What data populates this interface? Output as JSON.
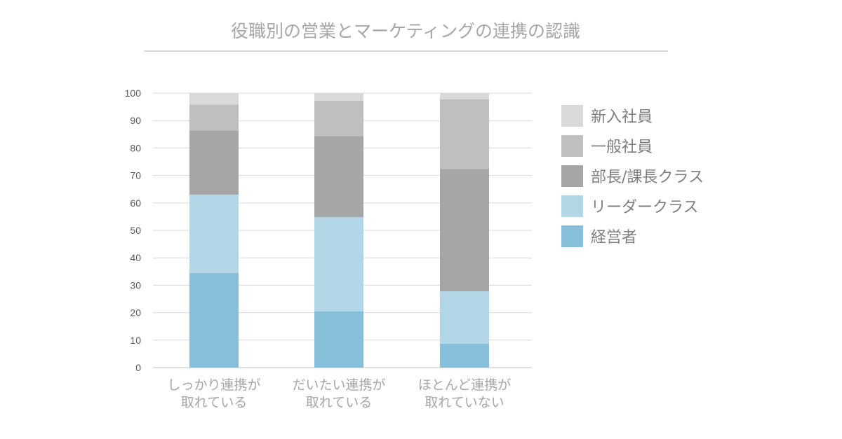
{
  "chart_data": {
    "type": "bar",
    "stacked": true,
    "title": "役職別の営業とマーケティングの連携の認識",
    "categories": [
      [
        "しっかり連携が",
        "取れている"
      ],
      [
        "だいたい連携が",
        "取れている"
      ],
      [
        "ほとんど連携が",
        "取れていない"
      ]
    ],
    "ylim": [
      0,
      100
    ],
    "yticks": [
      0,
      10,
      20,
      30,
      40,
      50,
      60,
      70,
      80,
      90,
      100
    ],
    "grid": true,
    "legend_position": "right",
    "series": [
      {
        "name": "経営者",
        "color": "#87bfda",
        "values": [
          34.5,
          20.5,
          8.7
        ]
      },
      {
        "name": "リーダークラス",
        "color": "#b2d6e6",
        "values": [
          28.5,
          34.3,
          19.1
        ]
      },
      {
        "name": "部長/課長クラス",
        "color": "#a6a6a6",
        "values": [
          23.4,
          29.5,
          44.6
        ]
      },
      {
        "name": "一般社員",
        "color": "#bfbfbf",
        "values": [
          9.4,
          12.9,
          25.3
        ]
      },
      {
        "name": "新入社員",
        "color": "#d9d9d9",
        "values": [
          4.2,
          2.8,
          2.3
        ]
      }
    ]
  }
}
